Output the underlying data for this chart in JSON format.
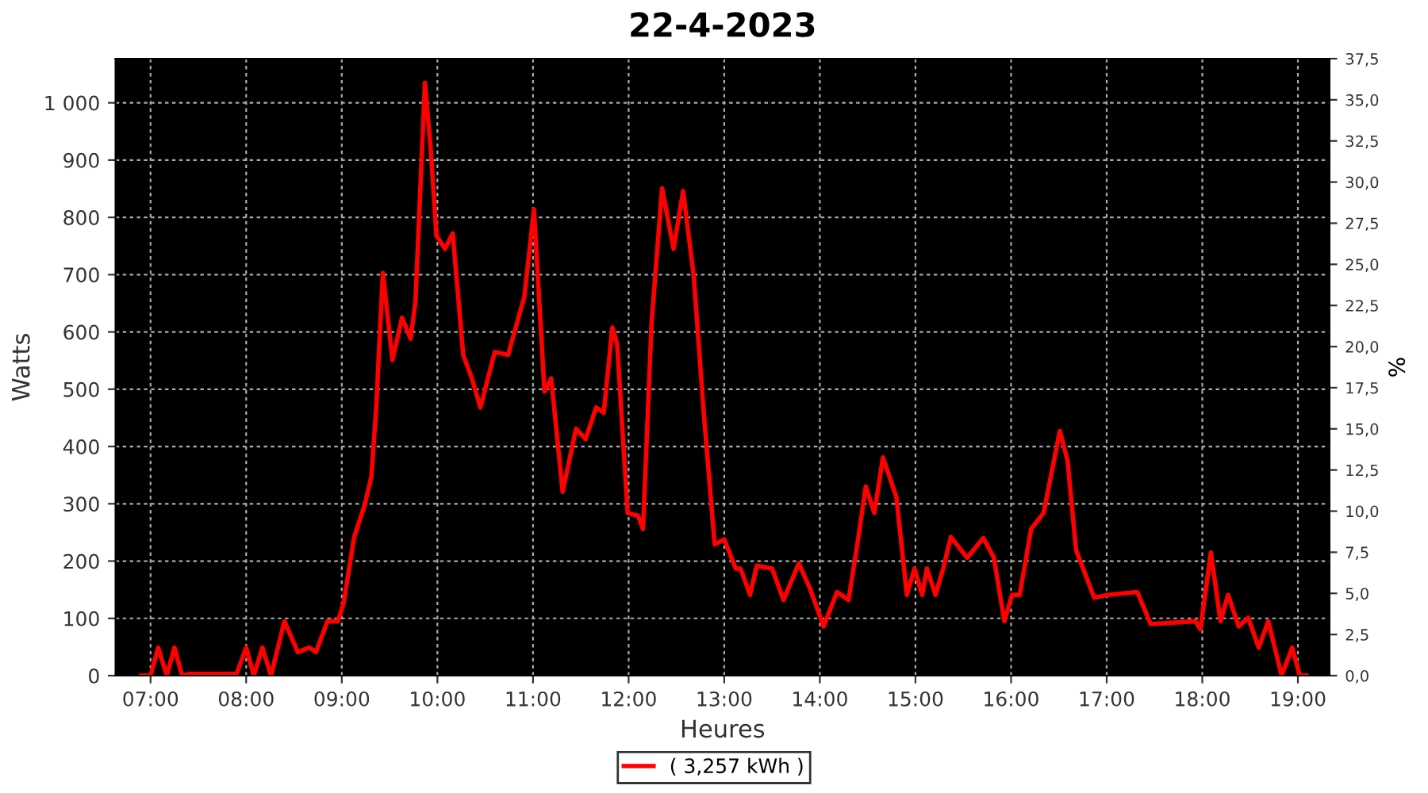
{
  "chart_data": {
    "type": "line",
    "title": "22-4-2023",
    "xlabel": "Heures",
    "ylabel": "Watts",
    "y2label": "%",
    "x": [
      6.9,
      7.0,
      7.08,
      7.17,
      7.25,
      7.33,
      7.4,
      7.9,
      8.0,
      8.08,
      8.17,
      8.26,
      8.4,
      8.54,
      8.66,
      8.73,
      8.85,
      8.96,
      9.02,
      9.13,
      9.24,
      9.31,
      9.36,
      9.43,
      9.53,
      9.63,
      9.72,
      9.77,
      9.87,
      9.93,
      9.99,
      10.08,
      10.16,
      10.27,
      10.36,
      10.45,
      10.6,
      10.74,
      10.91,
      11.01,
      11.12,
      11.19,
      11.31,
      11.45,
      11.55,
      11.66,
      11.74,
      11.83,
      11.88,
      11.99,
      12.1,
      12.15,
      12.24,
      12.35,
      12.47,
      12.57,
      12.68,
      12.79,
      12.9,
      13.0,
      13.12,
      13.17,
      13.27,
      13.34,
      13.5,
      13.62,
      13.78,
      13.89,
      14.04,
      14.18,
      14.3,
      14.4,
      14.48,
      14.57,
      14.66,
      14.8,
      14.91,
      14.99,
      15.07,
      15.12,
      15.21,
      15.29,
      15.37,
      15.54,
      15.71,
      15.82,
      15.93,
      16.01,
      16.09,
      16.21,
      16.34,
      16.51,
      16.59,
      16.68,
      16.87,
      17.01,
      17.32,
      17.46,
      17.93,
      17.98,
      18.09,
      18.19,
      18.27,
      18.38,
      18.48,
      18.59,
      18.69,
      18.83,
      18.94,
      19.02,
      19.09
    ],
    "series": [
      {
        "name": "( 3,257 kWh )",
        "color": "#ff0000",
        "values": [
          0,
          0,
          49,
          0,
          49,
          0,
          3,
          3,
          49,
          0,
          49,
          0,
          95,
          41,
          49,
          41,
          95,
          95,
          127,
          242,
          298,
          348,
          468,
          703,
          551,
          625,
          588,
          652,
          1035,
          920,
          768,
          745,
          772,
          560,
          519,
          468,
          565,
          560,
          662,
          814,
          496,
          519,
          321,
          431,
          413,
          468,
          459,
          608,
          579,
          284,
          279,
          256,
          616,
          851,
          745,
          846,
          699,
          450,
          229,
          238,
          187,
          187,
          141,
          192,
          187,
          132,
          196,
          155,
          86,
          146,
          132,
          238,
          330,
          284,
          381,
          312,
          141,
          187,
          141,
          187,
          141,
          187,
          242,
          206,
          240,
          206,
          95,
          141,
          141,
          256,
          284,
          427,
          376,
          219,
          136,
          141,
          146,
          90,
          95,
          81,
          215,
          95,
          141,
          86,
          101,
          49,
          95,
          0,
          49,
          0,
          0
        ]
      }
    ],
    "xlim": [
      6.635,
      19.33
    ],
    "xticks": [
      {
        "value": 7,
        "label": "07:00"
      },
      {
        "value": 8,
        "label": "08:00"
      },
      {
        "value": 9,
        "label": "09:00"
      },
      {
        "value": 10,
        "label": "10:00"
      },
      {
        "value": 11,
        "label": "11:00"
      },
      {
        "value": 12,
        "label": "12:00"
      },
      {
        "value": 13,
        "label": "13:00"
      },
      {
        "value": 14,
        "label": "14:00"
      },
      {
        "value": 15,
        "label": "15:00"
      },
      {
        "value": 16,
        "label": "16:00"
      },
      {
        "value": 17,
        "label": "17:00"
      },
      {
        "value": 18,
        "label": "18:00"
      },
      {
        "value": 19,
        "label": "19:00"
      }
    ],
    "ylim": [
      0,
      1077
    ],
    "yticks": [
      0,
      100,
      200,
      300,
      400,
      500,
      600,
      700,
      800,
      900,
      {
        "value": 1000,
        "label": "1 000"
      }
    ],
    "y2lim": [
      0,
      37.5
    ],
    "y2ticks": [
      {
        "value": 0,
        "label": "0,0"
      },
      {
        "value": 2.5,
        "label": "2,5"
      },
      {
        "value": 5,
        "label": "5,0"
      },
      {
        "value": 7.5,
        "label": "7,5"
      },
      {
        "value": 10,
        "label": "10,0"
      },
      {
        "value": 12.5,
        "label": "12,5"
      },
      {
        "value": 15,
        "label": "15,0"
      },
      {
        "value": 17.5,
        "label": "17,5"
      },
      {
        "value": 20,
        "label": "20,0"
      },
      {
        "value": 22.5,
        "label": "22,5"
      },
      {
        "value": 25,
        "label": "25,0"
      },
      {
        "value": 27.5,
        "label": "27,5"
      },
      {
        "value": 30,
        "label": "30,0"
      },
      {
        "value": 32.5,
        "label": "32,5"
      },
      {
        "value": 35,
        "label": "35,0"
      },
      {
        "value": 37.5,
        "label": "37,5"
      }
    ],
    "grid": true,
    "legend": "bottom",
    "marker": "none",
    "line_style": "solid"
  }
}
